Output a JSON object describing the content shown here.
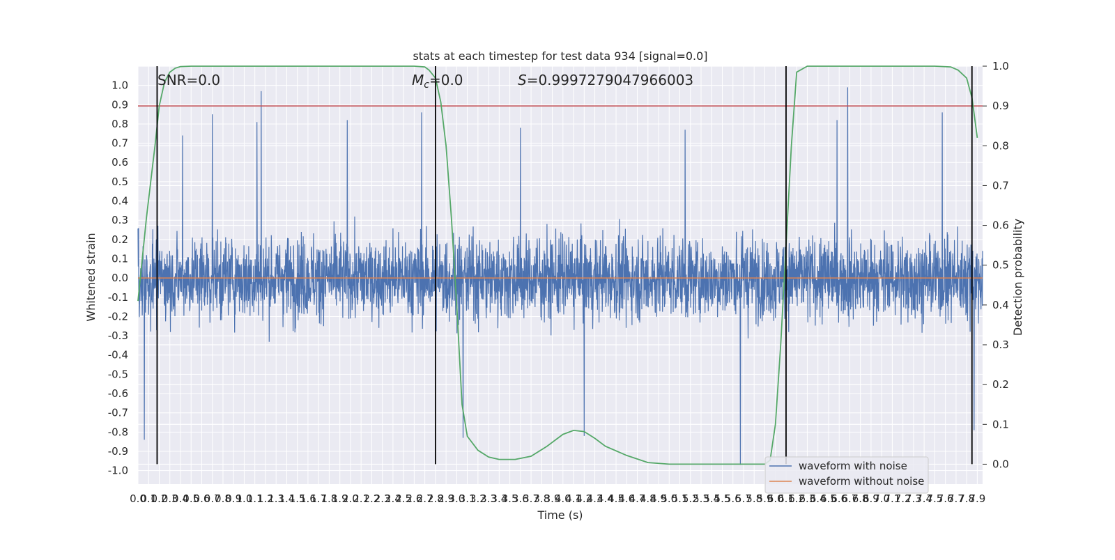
{
  "chart_data": {
    "type": "line",
    "title": "stats at each timestep for test data 934 [signal=0.0]",
    "xlabel": "Time (s)",
    "ylabel": "Whitened strain",
    "y2label": "Detection probability",
    "xlim": [
      0.0,
      7.95
    ],
    "ylim": [
      -1.07,
      1.1
    ],
    "y2lim": [
      -0.05,
      1.0
    ],
    "grid": true,
    "legend_position": "lower right",
    "x_tick_labels": [
      "0.0",
      "0.1",
      "0.2",
      "0.3",
      "0.4",
      "0.5",
      "0.6",
      "0.7",
      "0.8",
      "0.9",
      "1.0",
      "1.1",
      "1.2",
      "1.3",
      "1.4",
      "1.5",
      "1.6",
      "1.7",
      "1.8",
      "1.9",
      "2.0",
      "2.1",
      "2.2",
      "2.3",
      "2.4",
      "2.5",
      "2.6",
      "2.7",
      "2.8",
      "2.9",
      "3.0",
      "3.1",
      "3.2",
      "3.3",
      "3.4",
      "3.5",
      "3.6",
      "3.7",
      "3.8",
      "3.9",
      "4.0",
      "4.1",
      "4.2",
      "4.3",
      "4.4",
      "4.5",
      "4.6",
      "4.7",
      "4.8",
      "4.9",
      "5.0",
      "5.1",
      "5.2",
      "5.3",
      "5.4",
      "5.5",
      "5.6",
      "5.7",
      "5.8",
      "5.9",
      "6.0",
      "6.1",
      "6.2",
      "6.3",
      "6.4",
      "6.5",
      "6.6",
      "6.7",
      "6.8",
      "6.9",
      "7.0",
      "7.1",
      "7.2",
      "7.3",
      "7.4",
      "7.5",
      "7.6",
      "7.7",
      "7.8",
      "7.9"
    ],
    "y_tick_labels": [
      "1.0",
      "0.9",
      "0.8",
      "0.7",
      "0.6",
      "0.5",
      "0.4",
      "0.3",
      "0.2",
      "0.1",
      "0.0",
      "-0.1",
      "-0.2",
      "-0.3",
      "-0.4",
      "-0.5",
      "-0.6",
      "-0.7",
      "-0.8",
      "-0.9",
      "-1.0"
    ],
    "y2_tick_labels": [
      "1.0",
      "0.9",
      "0.8",
      "0.7",
      "0.6",
      "0.5",
      "0.4",
      "0.3",
      "0.2",
      "0.1",
      "0.0"
    ],
    "annotations": {
      "snr": "SNR=0.0",
      "mc_symbol": "M",
      "mc_subscript": "c",
      "mc_value": "=0.0",
      "s_symbol": "S",
      "s_value": "=0.9997279047966003"
    },
    "series": [
      {
        "name": "waveform with noise",
        "axis": "left",
        "color": "#4c72b0",
        "description_kind": "noise",
        "amplitude_typical": 0.5,
        "peak_values": [
          [
            0.42,
            0.74
          ],
          [
            0.7,
            0.85
          ],
          [
            1.12,
            0.81
          ],
          [
            1.16,
            0.97
          ],
          [
            1.97,
            0.82
          ],
          [
            2.67,
            0.86
          ],
          [
            3.6,
            0.78
          ],
          [
            5.15,
            0.77
          ],
          [
            6.58,
            0.82
          ],
          [
            6.68,
            0.99
          ],
          [
            7.57,
            0.86
          ],
          [
            0.06,
            -0.84
          ],
          [
            3.06,
            -0.83
          ],
          [
            4.2,
            -0.82
          ],
          [
            5.67,
            -0.97
          ],
          [
            7.87,
            -0.79
          ]
        ]
      },
      {
        "name": "waveform without noise",
        "axis": "left",
        "color": "#dd8452",
        "y": 0.0
      },
      {
        "name": "Detection probability",
        "axis": "right",
        "color": "#55a868",
        "x": [
          0.0,
          0.08,
          0.16,
          0.2,
          0.25,
          0.3,
          0.35,
          0.4,
          0.5,
          0.7,
          1.0,
          2.0,
          2.5,
          2.6,
          2.7,
          2.74,
          2.8,
          2.85,
          2.9,
          2.95,
          3.0,
          3.05,
          3.1,
          3.2,
          3.3,
          3.4,
          3.55,
          3.7,
          3.85,
          4.0,
          4.1,
          4.2,
          4.3,
          4.4,
          4.6,
          4.8,
          5.0,
          5.5,
          5.8,
          5.9,
          5.95,
          6.0,
          6.05,
          6.1,
          6.15,
          6.2,
          6.3,
          6.5,
          7.0,
          7.5,
          7.65,
          7.72,
          7.8,
          7.85,
          7.9
        ],
        "y": [
          0.41,
          0.62,
          0.8,
          0.9,
          0.96,
          0.985,
          0.995,
          0.999,
          1.0,
          1.0,
          1.0,
          1.0,
          1.0,
          1.0,
          0.998,
          0.99,
          0.97,
          0.91,
          0.8,
          0.62,
          0.4,
          0.15,
          0.07,
          0.035,
          0.018,
          0.012,
          0.012,
          0.02,
          0.045,
          0.075,
          0.085,
          0.082,
          0.065,
          0.045,
          0.022,
          0.004,
          0.0,
          0.0,
          0.0,
          0.0,
          0.01,
          0.1,
          0.3,
          0.55,
          0.8,
          0.985,
          1.0,
          1.0,
          1.0,
          1.0,
          0.998,
          0.99,
          0.97,
          0.92,
          0.82
        ]
      }
    ],
    "threshold_line": {
      "axis": "right",
      "value": 0.9,
      "color": "#c44e52"
    },
    "vertical_lines": [
      0.18,
      2.8,
      6.1,
      7.85
    ]
  }
}
